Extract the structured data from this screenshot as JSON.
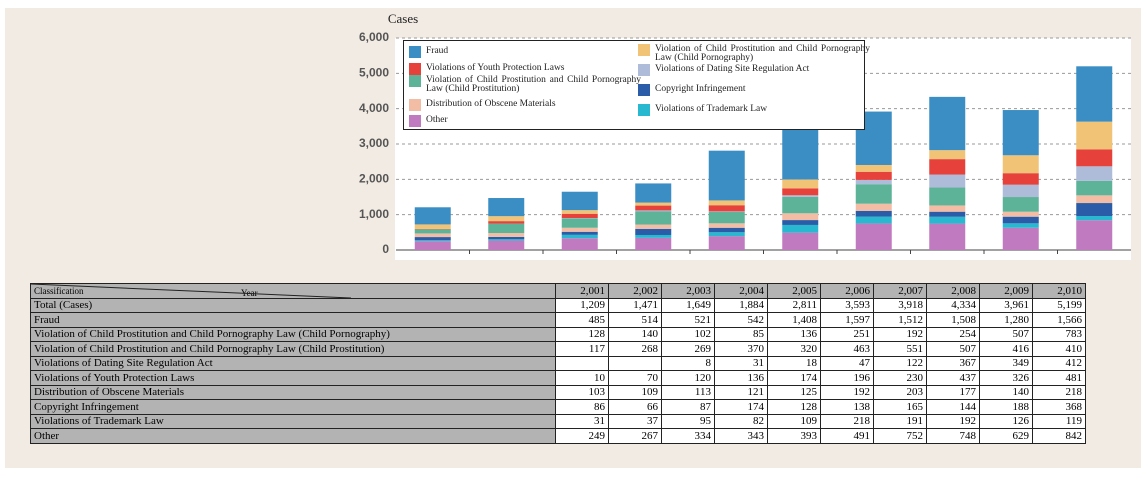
{
  "chart_data": {
    "type": "bar",
    "stacked": true,
    "y_label": "Cases",
    "categories": [
      "2,001",
      "2,002",
      "2,003",
      "2,004",
      "2,005",
      "2,006",
      "2,007",
      "2,008",
      "2,009",
      "2,010"
    ],
    "ylim": [
      0,
      6000
    ],
    "yticks": [
      0,
      {
        "value": 1000,
        "label": "1,000"
      },
      {
        "value": 2000,
        "label": "2,000"
      },
      {
        "value": 3000,
        "label": "3,000"
      },
      {
        "value": 4000,
        "label": "4,000"
      },
      {
        "value": 5000,
        "label": "5,000"
      },
      {
        "value": 6000,
        "label": "6,000"
      }
    ],
    "grid": true,
    "series": [
      {
        "name": "Fraud",
        "color": "#3a8ec4",
        "values": [
          485,
          514,
          521,
          542,
          1408,
          1597,
          1512,
          1508,
          1280,
          1566
        ],
        "value_labels": [
          "485",
          "514",
          "521",
          "542",
          "1,408",
          "1,597",
          "1,512",
          "1,508",
          "1,280",
          "1,566"
        ]
      },
      {
        "name": "Violation of Child Prostitution and Child Pornography Law (Child Pornography)",
        "color": "#f0c376",
        "values": [
          128,
          140,
          102,
          85,
          136,
          251,
          192,
          254,
          507,
          783
        ]
      },
      {
        "name": "Violation of Child Prostitution and Child Pornography Law (Child Prostitution)",
        "color": "#5cb397",
        "values": [
          117,
          268,
          269,
          370,
          320,
          463,
          551,
          507,
          416,
          410
        ]
      },
      {
        "name": "Violations of Dating Site Regulation Act",
        "color": "#aebbd9",
        "values": [
          null,
          null,
          8,
          31,
          18,
          47,
          122,
          367,
          349,
          412
        ]
      },
      {
        "name": "Violations of Youth Protection Laws",
        "color": "#e6413b",
        "values": [
          10,
          70,
          120,
          136,
          174,
          196,
          230,
          437,
          326,
          481
        ]
      },
      {
        "name": "Distribution of Obscene Materials",
        "color": "#f3bca4",
        "values": [
          103,
          109,
          113,
          121,
          125,
          192,
          203,
          177,
          140,
          218
        ]
      },
      {
        "name": "Copyright Infringement",
        "color": "#2a5ca8",
        "values": [
          86,
          66,
          87,
          174,
          128,
          138,
          165,
          144,
          188,
          368
        ]
      },
      {
        "name": "Violations of Trademark Law",
        "color": "#28b9d1",
        "values": [
          31,
          37,
          95,
          82,
          109,
          218,
          191,
          192,
          126,
          119
        ]
      },
      {
        "name": "Other",
        "color": "#c07abf",
        "values": [
          249,
          267,
          334,
          343,
          393,
          491,
          752,
          748,
          629,
          842
        ]
      }
    ]
  },
  "table": {
    "header": {
      "classification": "Classification",
      "year": "Year"
    },
    "total": {
      "name": "Total (Cases)",
      "values": [
        1209,
        1471,
        1649,
        1884,
        2811,
        3593,
        3918,
        4334,
        3961,
        5199
      ],
      "value_labels": [
        "1,209",
        "1,471",
        "1,649",
        "1,884",
        "2,811",
        "3,593",
        "3,918",
        "4,334",
        "3,961",
        "5,199"
      ]
    }
  }
}
